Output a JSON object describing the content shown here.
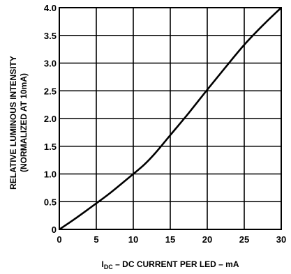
{
  "chart_data": {
    "type": "line",
    "title": "",
    "xlabel_main": "I",
    "xlabel_sub": "DC",
    "xlabel_rest": " – DC CURRENT PER LED – mA",
    "ylabel_line1": "RELATIVE LUMINOUS INTENSITY",
    "ylabel_line2": "(NORMALIZED AT 10mA)",
    "xlim": [
      0,
      30
    ],
    "ylim": [
      0,
      4.0
    ],
    "x_ticks": [
      0,
      5,
      10,
      15,
      20,
      25,
      30
    ],
    "x_tick_labels": [
      "0",
      "5",
      "10",
      "15",
      "20",
      "25",
      "30"
    ],
    "y_ticks": [
      0,
      0.5,
      1.0,
      1.5,
      2.0,
      2.5,
      3.0,
      3.5,
      4.0
    ],
    "y_tick_labels": [
      "0",
      "0.5",
      "1.0",
      "1.5",
      "2.0",
      "2.5",
      "3.0",
      "3.5",
      "4.0"
    ],
    "grid": true,
    "series": [
      {
        "color": "#000000",
        "x": [
          0,
          2,
          5,
          7,
          10,
          11.5,
          13,
          15,
          17.5,
          20,
          22.5,
          25,
          27.5,
          30
        ],
        "y": [
          0,
          0.18,
          0.47,
          0.67,
          1.0,
          1.17,
          1.38,
          1.7,
          2.1,
          2.52,
          2.93,
          3.33,
          3.68,
          4.0
        ]
      }
    ]
  }
}
